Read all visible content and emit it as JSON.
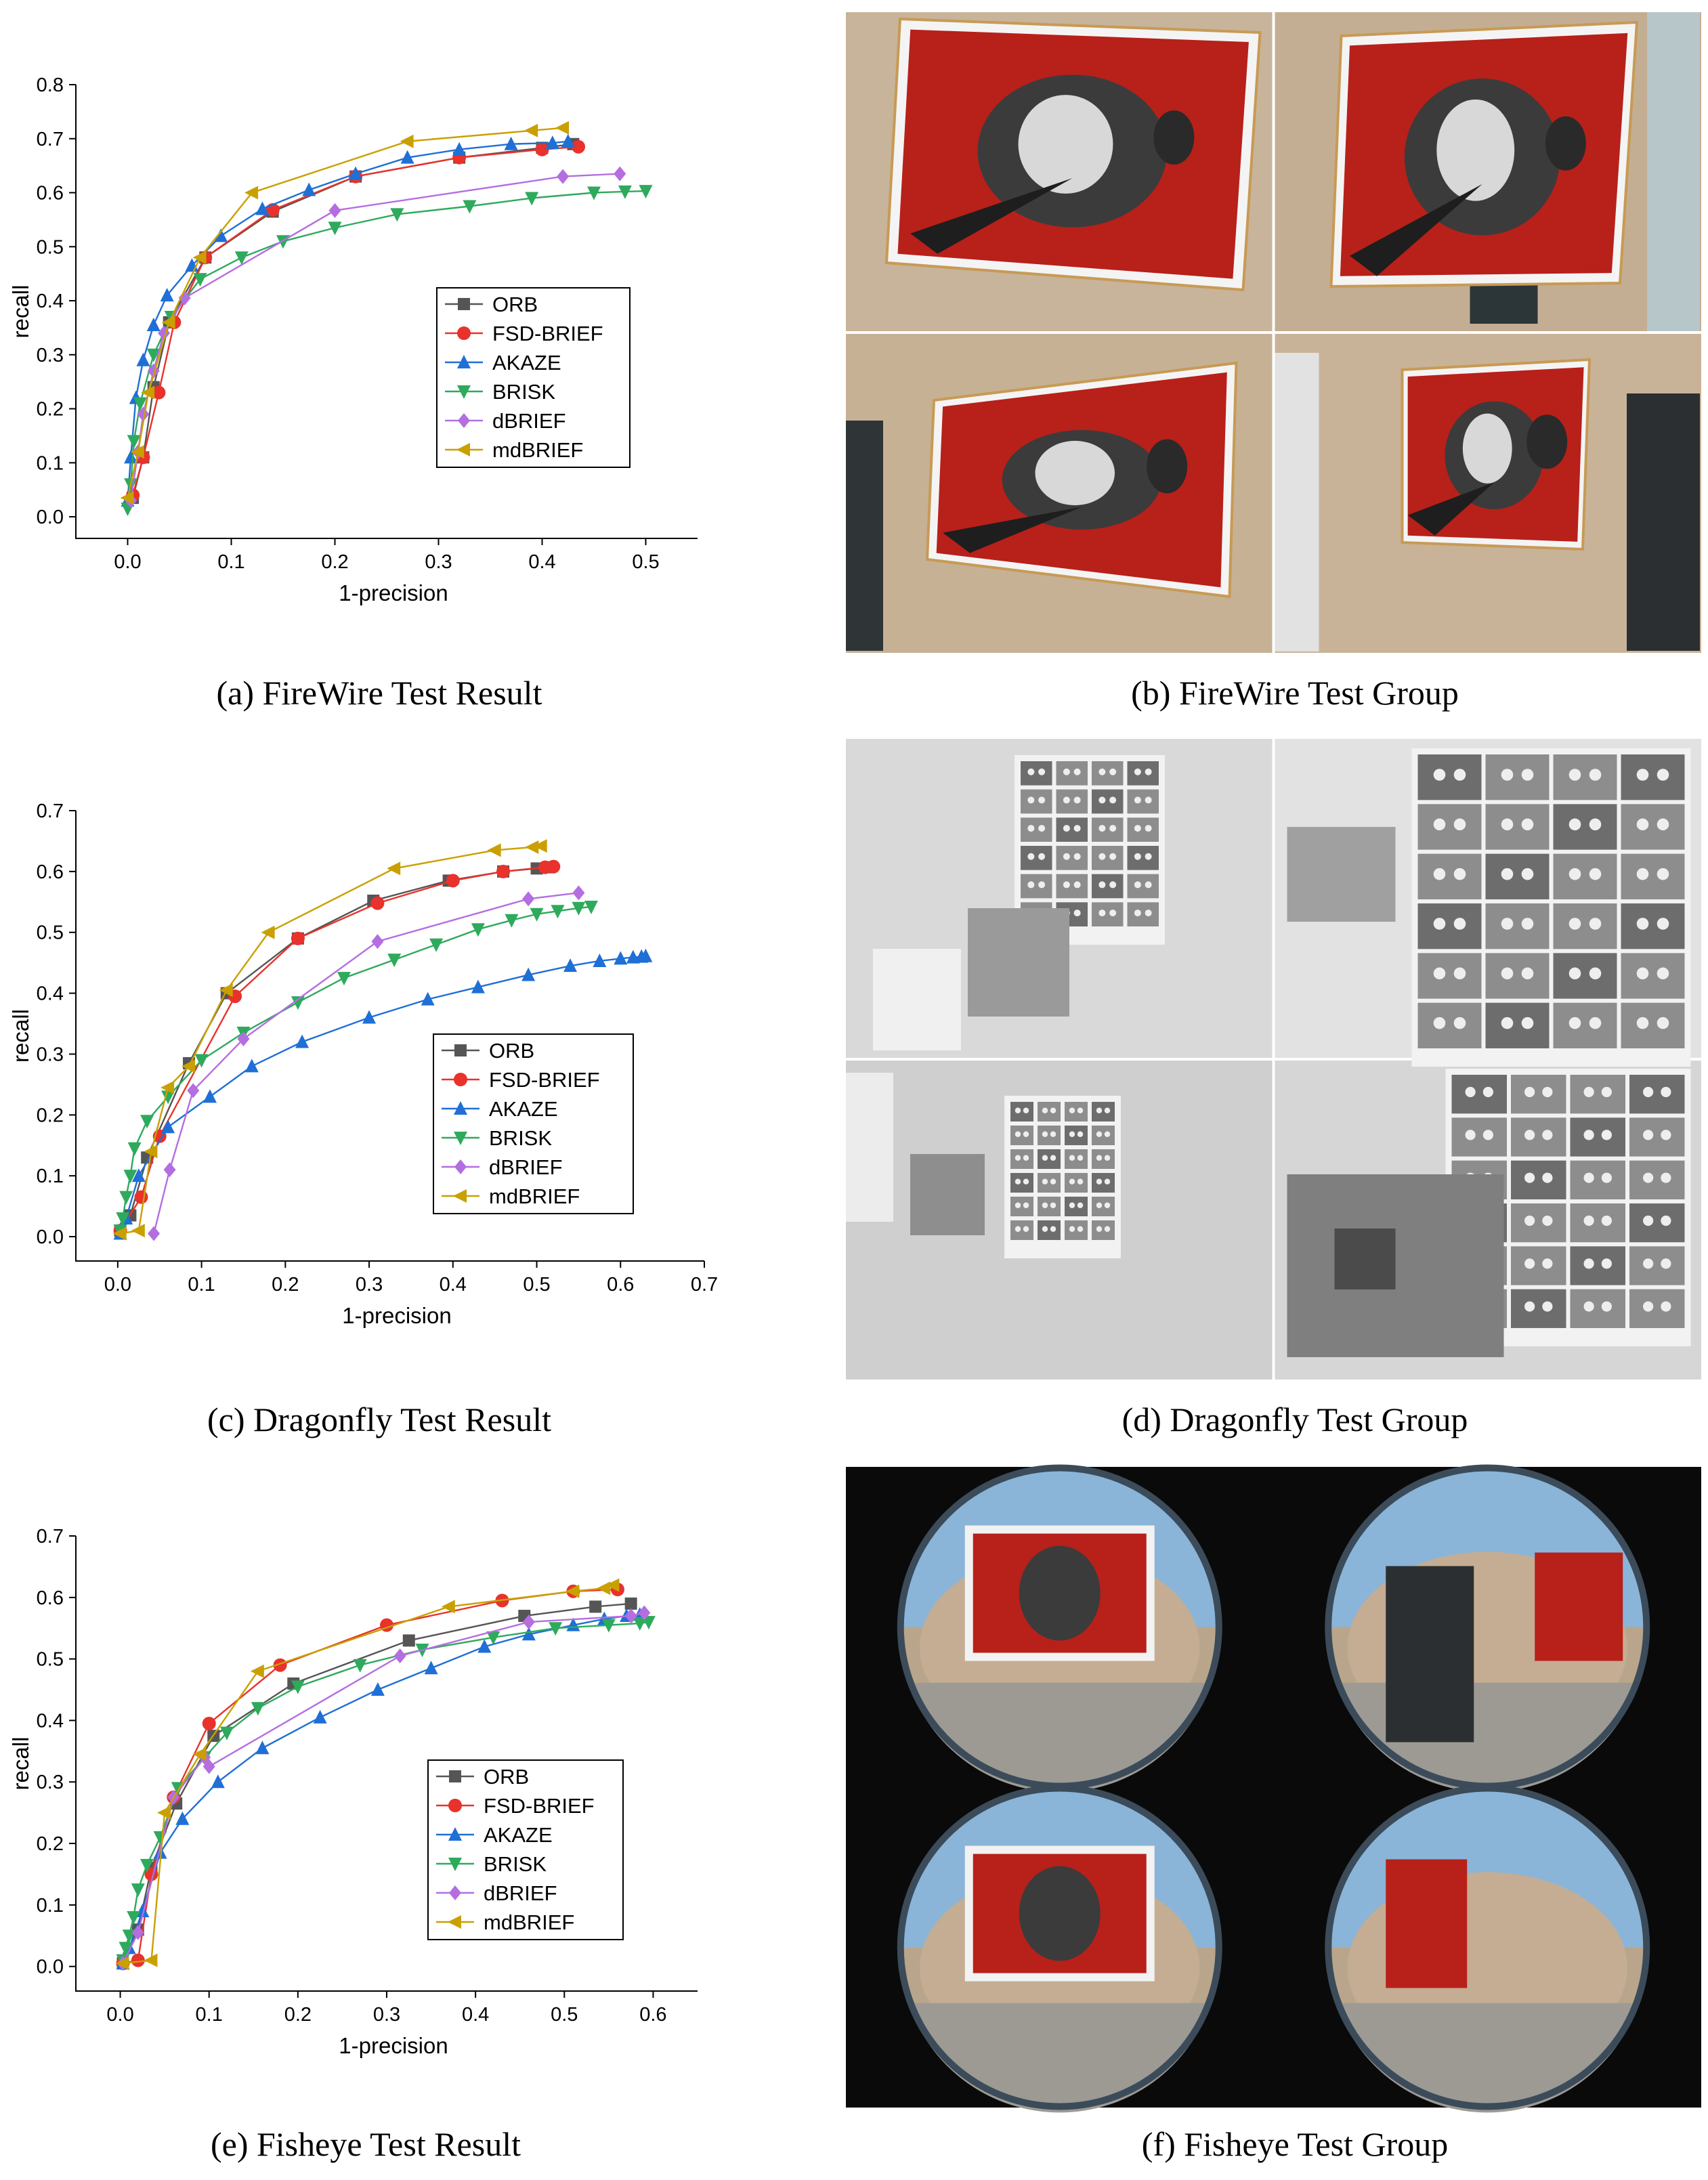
{
  "captions": {
    "a": "(a)  FireWire Test Result",
    "b": "(b)  FireWire Test Group",
    "c": "(c)  Dragonfly Test Result",
    "d": "(d)  Dragonfly Test Group",
    "e": "(e)  Fisheye Test Result",
    "f": "(f)  Fisheye Test Group"
  },
  "colors": {
    "ORB": "#555555",
    "FSD-BRIEF": "#e8322b",
    "AKAZE": "#1f6fd6",
    "BRISK": "#2eaa5c",
    "dBRIEF": "#b46ee0",
    "mdBRIEF": "#c9a000"
  },
  "markers": {
    "ORB": "square",
    "FSD-BRIEF": "circle",
    "AKAZE": "triangle-up",
    "BRISK": "triangle-down",
    "dBRIEF": "diamond",
    "mdBRIEF": "triangle-left"
  },
  "chart_data": [
    {
      "id": "firewire",
      "type": "line",
      "title": "",
      "xlabel": "1-precision",
      "ylabel": "recall",
      "xlim": [
        -0.05,
        0.55
      ],
      "ylim": [
        -0.04,
        0.8
      ],
      "xticks": [
        "0.0",
        "0.1",
        "0.2",
        "0.3",
        "0.4",
        "0.5"
      ],
      "yticks": [
        "0.0",
        "0.1",
        "0.2",
        "0.3",
        "0.4",
        "0.5",
        "0.6",
        "0.7",
        "0.8"
      ],
      "legend": [
        "ORB",
        "FSD-BRIEF",
        "AKAZE",
        "BRISK",
        "dBRIEF",
        "mdBRIEF"
      ],
      "series": [
        {
          "name": "ORB",
          "points": [
            [
              0.005,
              0.035
            ],
            [
              0.015,
              0.11
            ],
            [
              0.025,
              0.24
            ],
            [
              0.04,
              0.36
            ],
            [
              0.075,
              0.48
            ],
            [
              0.14,
              0.565
            ],
            [
              0.22,
              0.63
            ],
            [
              0.32,
              0.665
            ],
            [
              0.4,
              0.683
            ],
            [
              0.43,
              0.69
            ]
          ]
        },
        {
          "name": "FSD-BRIEF",
          "points": [
            [
              0.005,
              0.04
            ],
            [
              0.015,
              0.11
            ],
            [
              0.03,
              0.23
            ],
            [
              0.045,
              0.36
            ],
            [
              0.075,
              0.48
            ],
            [
              0.14,
              0.568
            ],
            [
              0.22,
              0.63
            ],
            [
              0.32,
              0.665
            ],
            [
              0.4,
              0.68
            ],
            [
              0.435,
              0.685
            ]
          ]
        },
        {
          "name": "AKAZE",
          "points": [
            [
              0.0,
              0.03
            ],
            [
              0.003,
              0.11
            ],
            [
              0.008,
              0.22
            ],
            [
              0.015,
              0.29
            ],
            [
              0.025,
              0.355
            ],
            [
              0.038,
              0.41
            ],
            [
              0.062,
              0.465
            ],
            [
              0.09,
              0.52
            ],
            [
              0.13,
              0.57
            ],
            [
              0.175,
              0.605
            ],
            [
              0.22,
              0.635
            ],
            [
              0.27,
              0.665
            ],
            [
              0.32,
              0.68
            ],
            [
              0.37,
              0.69
            ],
            [
              0.41,
              0.692
            ],
            [
              0.425,
              0.695
            ]
          ]
        },
        {
          "name": "BRISK",
          "points": [
            [
              0.0,
              0.015
            ],
            [
              0.003,
              0.06
            ],
            [
              0.006,
              0.14
            ],
            [
              0.012,
              0.21
            ],
            [
              0.025,
              0.3
            ],
            [
              0.042,
              0.37
            ],
            [
              0.07,
              0.44
            ],
            [
              0.11,
              0.48
            ],
            [
              0.15,
              0.51
            ],
            [
              0.2,
              0.535
            ],
            [
              0.26,
              0.56
            ],
            [
              0.33,
              0.575
            ],
            [
              0.39,
              0.59
            ],
            [
              0.45,
              0.6
            ],
            [
              0.48,
              0.602
            ],
            [
              0.5,
              0.603
            ]
          ]
        },
        {
          "name": "dBRIEF",
          "points": [
            [
              0.003,
              0.03
            ],
            [
              0.01,
              0.12
            ],
            [
              0.015,
              0.19
            ],
            [
              0.025,
              0.27
            ],
            [
              0.035,
              0.34
            ],
            [
              0.055,
              0.405
            ],
            [
              0.2,
              0.567
            ],
            [
              0.42,
              0.63
            ],
            [
              0.475,
              0.635
            ]
          ]
        },
        {
          "name": "mdBRIEF",
          "points": [
            [
              0.0,
              0.035
            ],
            [
              0.01,
              0.12
            ],
            [
              0.02,
              0.23
            ],
            [
              0.04,
              0.36
            ],
            [
              0.07,
              0.48
            ],
            [
              0.12,
              0.6
            ],
            [
              0.27,
              0.695
            ],
            [
              0.39,
              0.715
            ],
            [
              0.42,
              0.72
            ]
          ]
        }
      ]
    },
    {
      "id": "dragonfly",
      "type": "line",
      "title": "",
      "xlabel": "1-precision",
      "ylabel": "recall",
      "xlim": [
        -0.05,
        0.7
      ],
      "ylim": [
        -0.04,
        0.7
      ],
      "xticks": [
        "0.0",
        "0.1",
        "0.2",
        "0.3",
        "0.4",
        "0.5",
        "0.6",
        "0.7"
      ],
      "yticks": [
        "0.0",
        "0.1",
        "0.2",
        "0.3",
        "0.4",
        "0.5",
        "0.6",
        "0.7"
      ],
      "legend": [
        "ORB",
        "FSD-BRIEF",
        "AKAZE",
        "BRISK",
        "dBRIEF",
        "mdBRIEF"
      ],
      "series": [
        {
          "name": "ORB",
          "points": [
            [
              0.003,
              0.01
            ],
            [
              0.015,
              0.035
            ],
            [
              0.035,
              0.13
            ],
            [
              0.085,
              0.285
            ],
            [
              0.13,
              0.4
            ],
            [
              0.215,
              0.49
            ],
            [
              0.305,
              0.552
            ],
            [
              0.395,
              0.585
            ],
            [
              0.46,
              0.6
            ],
            [
              0.5,
              0.605
            ],
            [
              0.515,
              0.607
            ]
          ]
        },
        {
          "name": "FSD-BRIEF",
          "points": [
            [
              0.003,
              0.01
            ],
            [
              0.028,
              0.065
            ],
            [
              0.05,
              0.165
            ],
            [
              0.14,
              0.395
            ],
            [
              0.215,
              0.49
            ],
            [
              0.31,
              0.548
            ],
            [
              0.4,
              0.585
            ],
            [
              0.46,
              0.6
            ],
            [
              0.51,
              0.607
            ],
            [
              0.52,
              0.608
            ]
          ]
        },
        {
          "name": "AKAZE",
          "points": [
            [
              0.003,
              0.005
            ],
            [
              0.01,
              0.03
            ],
            [
              0.025,
              0.1
            ],
            [
              0.06,
              0.18
            ],
            [
              0.11,
              0.23
            ],
            [
              0.16,
              0.28
            ],
            [
              0.22,
              0.32
            ],
            [
              0.3,
              0.36
            ],
            [
              0.37,
              0.39
            ],
            [
              0.43,
              0.41
            ],
            [
              0.49,
              0.43
            ],
            [
              0.54,
              0.445
            ],
            [
              0.575,
              0.453
            ],
            [
              0.6,
              0.457
            ],
            [
              0.615,
              0.459
            ],
            [
              0.625,
              0.46
            ],
            [
              0.63,
              0.461
            ]
          ]
        },
        {
          "name": "BRISK",
          "points": [
            [
              0.003,
              0.01
            ],
            [
              0.006,
              0.03
            ],
            [
              0.01,
              0.065
            ],
            [
              0.015,
              0.1
            ],
            [
              0.02,
              0.145
            ],
            [
              0.035,
              0.19
            ],
            [
              0.06,
              0.23
            ],
            [
              0.1,
              0.29
            ],
            [
              0.15,
              0.335
            ],
            [
              0.215,
              0.385
            ],
            [
              0.27,
              0.425
            ],
            [
              0.33,
              0.455
            ],
            [
              0.38,
              0.48
            ],
            [
              0.43,
              0.505
            ],
            [
              0.47,
              0.52
            ],
            [
              0.5,
              0.53
            ],
            [
              0.525,
              0.535
            ],
            [
              0.55,
              0.54
            ],
            [
              0.565,
              0.542
            ]
          ]
        },
        {
          "name": "dBRIEF",
          "points": [
            [
              0.043,
              0.005
            ],
            [
              0.062,
              0.11
            ],
            [
              0.09,
              0.24
            ],
            [
              0.15,
              0.325
            ],
            [
              0.31,
              0.485
            ],
            [
              0.49,
              0.555
            ],
            [
              0.55,
              0.565
            ]
          ]
        },
        {
          "name": "mdBRIEF",
          "points": [
            [
              0.003,
              0.005
            ],
            [
              0.025,
              0.01
            ],
            [
              0.04,
              0.14
            ],
            [
              0.06,
              0.245
            ],
            [
              0.085,
              0.28
            ],
            [
              0.13,
              0.405
            ],
            [
              0.18,
              0.5
            ],
            [
              0.33,
              0.605
            ],
            [
              0.45,
              0.635
            ],
            [
              0.495,
              0.64
            ],
            [
              0.505,
              0.642
            ]
          ]
        }
      ]
    },
    {
      "id": "fisheye",
      "type": "line",
      "title": "",
      "xlabel": "1-precision",
      "ylabel": "recall",
      "xlim": [
        -0.05,
        0.65
      ],
      "ylim": [
        -0.04,
        0.7
      ],
      "xticks": [
        "0.0",
        "0.1",
        "0.2",
        "0.3",
        "0.4",
        "0.5",
        "0.6"
      ],
      "yticks": [
        "0.0",
        "0.1",
        "0.2",
        "0.3",
        "0.4",
        "0.5",
        "0.6",
        "0.7"
      ],
      "legend": [
        "ORB",
        "FSD-BRIEF",
        "AKAZE",
        "BRISK",
        "dBRIEF",
        "mdBRIEF"
      ],
      "series": [
        {
          "name": "ORB",
          "points": [
            [
              0.003,
              0.005
            ],
            [
              0.02,
              0.06
            ],
            [
              0.035,
              0.16
            ],
            [
              0.063,
              0.265
            ],
            [
              0.105,
              0.375
            ],
            [
              0.195,
              0.46
            ],
            [
              0.325,
              0.53
            ],
            [
              0.455,
              0.57
            ],
            [
              0.535,
              0.585
            ],
            [
              0.575,
              0.59
            ]
          ]
        },
        {
          "name": "FSD-BRIEF",
          "points": [
            [
              0.003,
              0.005
            ],
            [
              0.02,
              0.01
            ],
            [
              0.035,
              0.15
            ],
            [
              0.06,
              0.275
            ],
            [
              0.1,
              0.395
            ],
            [
              0.18,
              0.49
            ],
            [
              0.3,
              0.555
            ],
            [
              0.43,
              0.595
            ],
            [
              0.51,
              0.61
            ],
            [
              0.56,
              0.613
            ]
          ]
        },
        {
          "name": "AKAZE",
          "points": [
            [
              0.003,
              0.005
            ],
            [
              0.01,
              0.03
            ],
            [
              0.025,
              0.09
            ],
            [
              0.045,
              0.185
            ],
            [
              0.07,
              0.24
            ],
            [
              0.11,
              0.3
            ],
            [
              0.16,
              0.355
            ],
            [
              0.225,
              0.405
            ],
            [
              0.29,
              0.45
            ],
            [
              0.35,
              0.485
            ],
            [
              0.41,
              0.52
            ],
            [
              0.46,
              0.54
            ],
            [
              0.51,
              0.555
            ],
            [
              0.545,
              0.565
            ],
            [
              0.57,
              0.57
            ],
            [
              0.585,
              0.572
            ]
          ]
        },
        {
          "name": "BRISK",
          "points": [
            [
              0.003,
              0.01
            ],
            [
              0.006,
              0.03
            ],
            [
              0.01,
              0.05
            ],
            [
              0.015,
              0.08
            ],
            [
              0.02,
              0.125
            ],
            [
              0.03,
              0.165
            ],
            [
              0.045,
              0.21
            ],
            [
              0.065,
              0.29
            ],
            [
              0.095,
              0.34
            ],
            [
              0.12,
              0.38
            ],
            [
              0.155,
              0.42
            ],
            [
              0.2,
              0.455
            ],
            [
              0.27,
              0.49
            ],
            [
              0.34,
              0.515
            ],
            [
              0.42,
              0.535
            ],
            [
              0.49,
              0.55
            ],
            [
              0.55,
              0.555
            ],
            [
              0.585,
              0.558
            ],
            [
              0.595,
              0.56
            ]
          ]
        },
        {
          "name": "dBRIEF",
          "points": [
            [
              0.003,
              0.005
            ],
            [
              0.02,
              0.055
            ],
            [
              0.06,
              0.275
            ],
            [
              0.095,
              0.34
            ],
            [
              0.1,
              0.325
            ],
            [
              0.315,
              0.505
            ],
            [
              0.46,
              0.56
            ],
            [
              0.575,
              0.57
            ],
            [
              0.59,
              0.575
            ]
          ]
        },
        {
          "name": "mdBRIEF",
          "points": [
            [
              0.003,
              0.005
            ],
            [
              0.035,
              0.01
            ],
            [
              0.05,
              0.25
            ],
            [
              0.09,
              0.345
            ],
            [
              0.155,
              0.48
            ],
            [
              0.37,
              0.585
            ],
            [
              0.51,
              0.61
            ],
            [
              0.545,
              0.615
            ],
            [
              0.555,
              0.62
            ]
          ]
        }
      ]
    }
  ]
}
